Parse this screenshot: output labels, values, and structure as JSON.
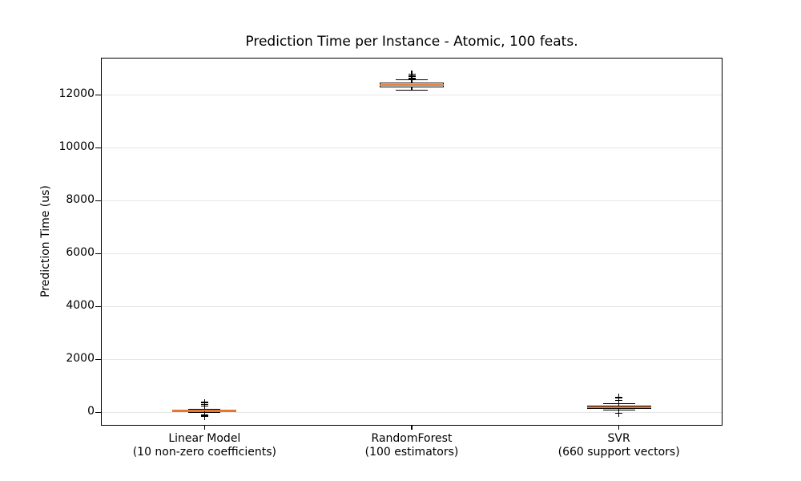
{
  "chart_data": {
    "type": "boxplot",
    "title": "Prediction Time per Instance - Atomic, 100 feats.",
    "ylabel": "Prediction Time (us)",
    "xlabel": "",
    "unit": "us",
    "yticks": [
      0,
      2000,
      4000,
      6000,
      8000,
      10000,
      12000
    ],
    "ylim": [
      -500,
      13400
    ],
    "grid": "horizontal",
    "legend": "none",
    "categories": [
      {
        "line1": "Linear Model",
        "line2": "(10 non-zero coefficients)"
      },
      {
        "line1": "RandomForest",
        "line2": "(100 estimators)"
      },
      {
        "line1": "SVR",
        "line2": "(660 support vectors)"
      }
    ],
    "series": [
      {
        "name": "Linear Model",
        "whisker_low": 10,
        "q1": 30,
        "median": 55,
        "q3": 80,
        "whisker_high": 120,
        "fliers": [
          370,
          300,
          245,
          -90,
          -140
        ]
      },
      {
        "name": "RandomForest",
        "whisker_low": 12180,
        "q1": 12280,
        "median": 12370,
        "q3": 12450,
        "whisker_high": 12570,
        "fliers": [
          12620,
          12700,
          12780
        ]
      },
      {
        "name": "SVR",
        "whisker_low": 80,
        "q1": 150,
        "median": 200,
        "q3": 250,
        "whisker_high": 340,
        "fliers": [
          560,
          450,
          -30
        ]
      }
    ],
    "colors": {
      "median": "#e5772e",
      "box_edge": "#000000",
      "whisker": "#000000",
      "flier": "#000000",
      "grid": "#e6e6e6",
      "text": "#000000",
      "background": "#ffffff"
    }
  }
}
